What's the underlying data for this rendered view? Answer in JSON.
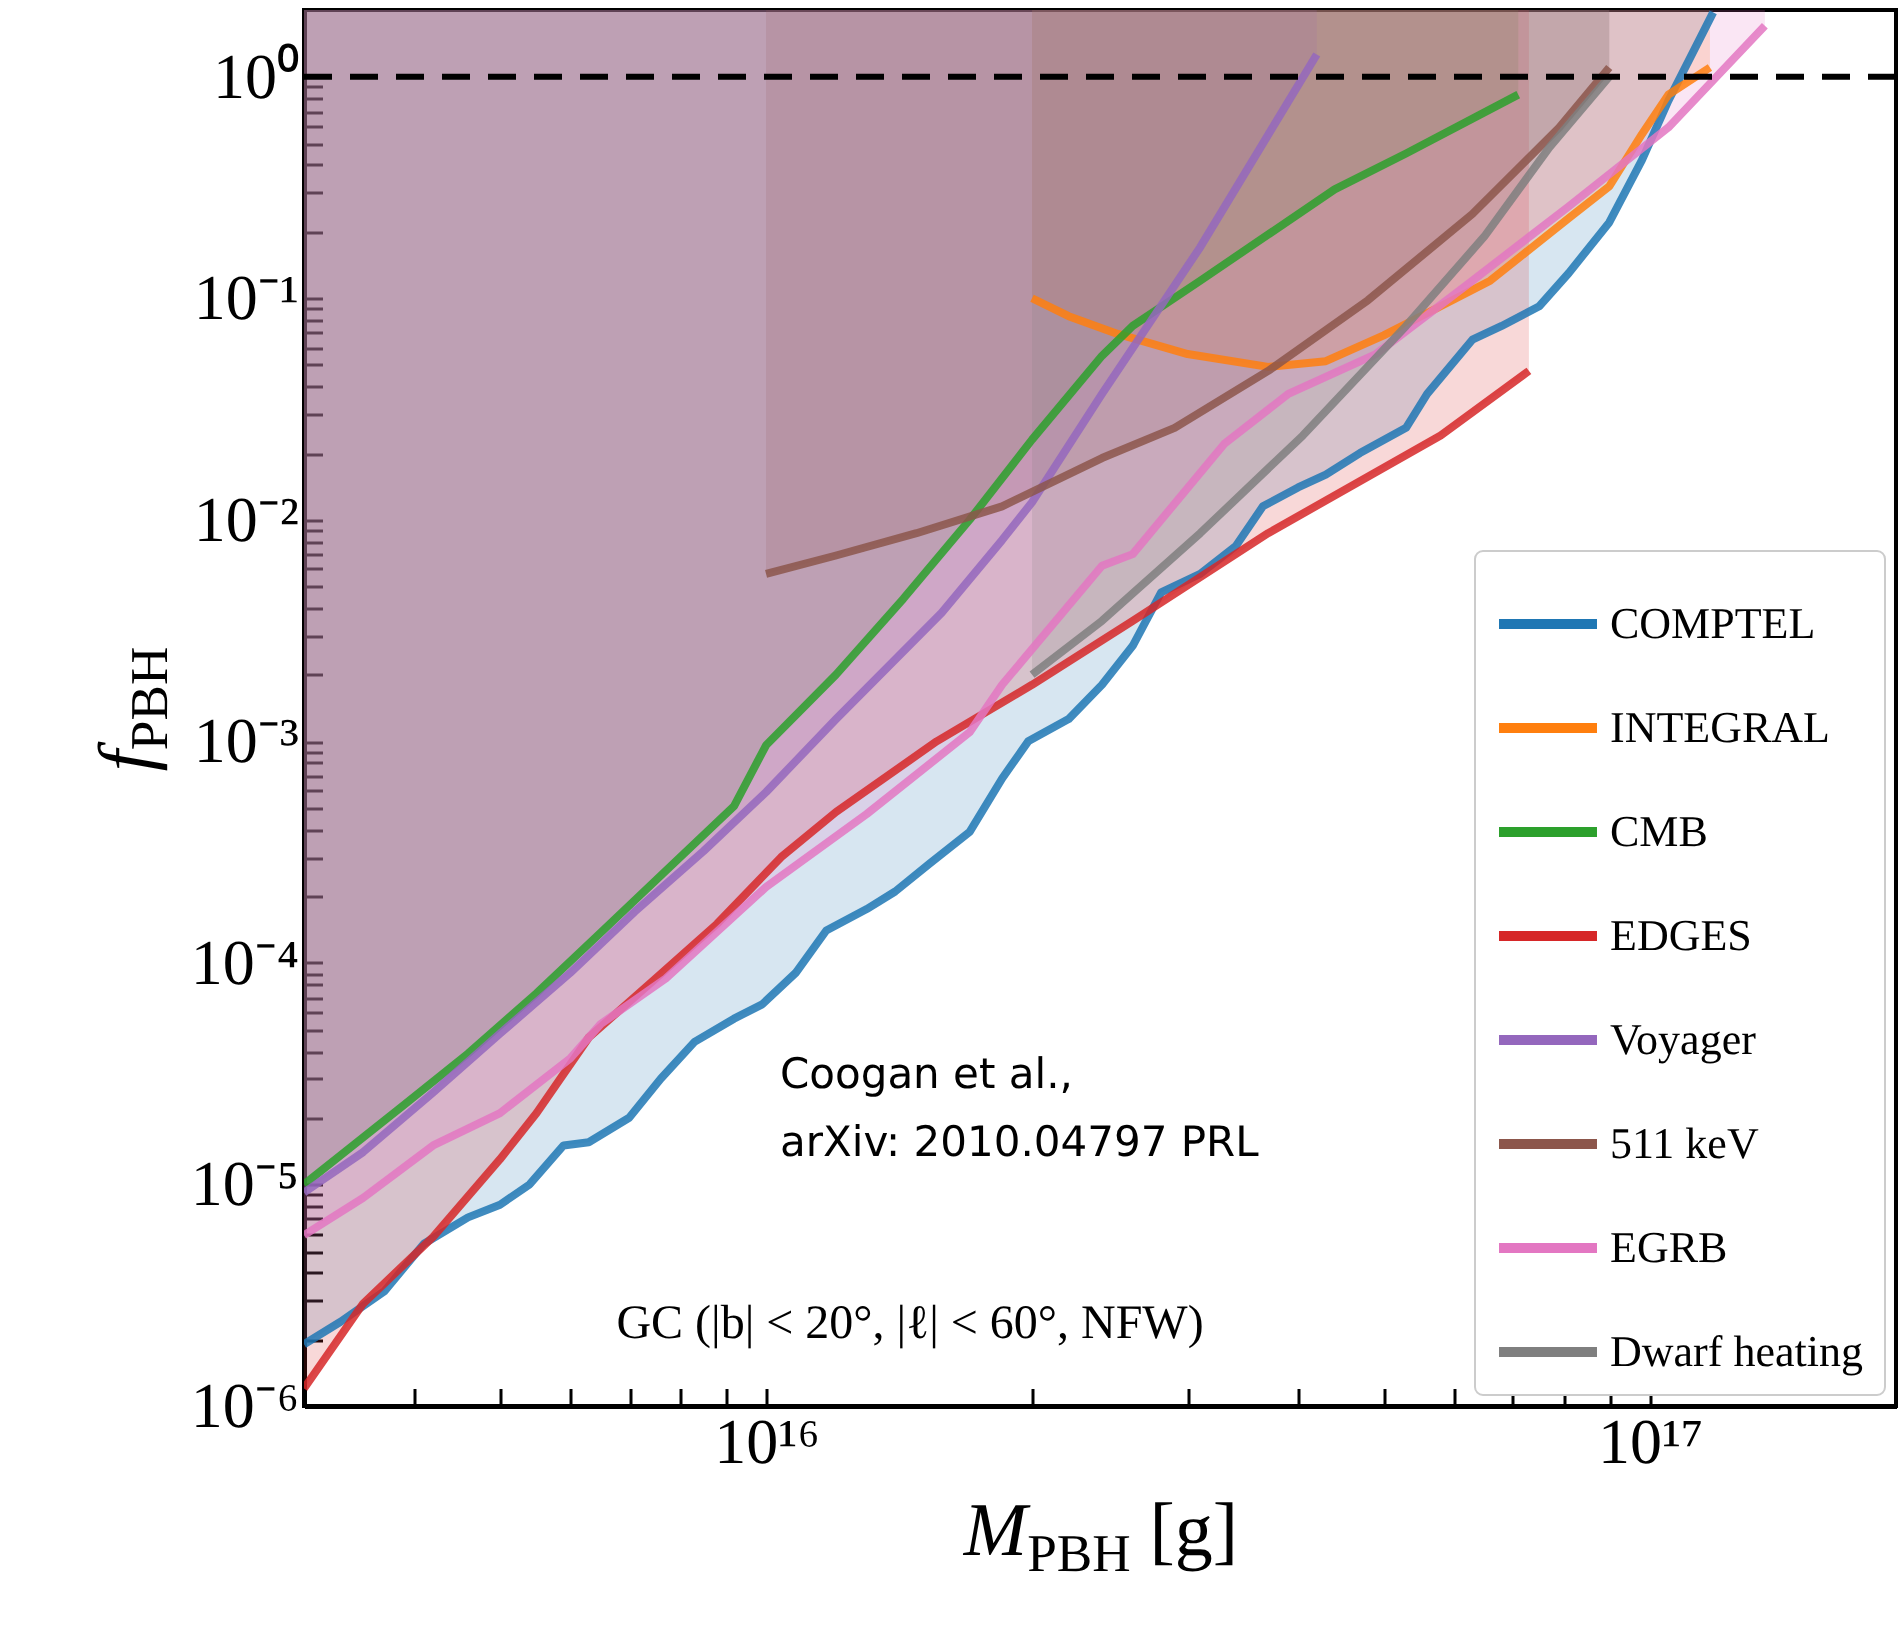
{
  "chart_data": {
    "type": "line",
    "xlabel": "M$_{PBH}$ [g]",
    "ylabel": "f$_{PBH}$",
    "log": "xy",
    "grid": false,
    "legend": "bottom right",
    "xlim": [
      3000000000000000.0,
      1.9e+17
    ],
    "ylim": [
      1e-06,
      2
    ],
    "xticks": [
      {
        "value": 4000000000000000.0,
        "label": null
      },
      {
        "value": 5000000000000000.0,
        "label": null
      },
      {
        "value": 6000000000000000.0,
        "label": null
      },
      {
        "value": 7000000000000000.0,
        "label": null
      },
      {
        "value": 8000000000000000.0,
        "label": null
      },
      {
        "value": 9000000000000000.0,
        "label": null
      },
      {
        "value": 1e+16,
        "label": "10¹⁶"
      },
      {
        "value": 2e+16,
        "label": null
      },
      {
        "value": 3e+16,
        "label": null
      },
      {
        "value": 4e+16,
        "label": null
      },
      {
        "value": 5e+16,
        "label": null
      },
      {
        "value": 6e+16,
        "label": null
      },
      {
        "value": 7e+16,
        "label": null
      },
      {
        "value": 8e+16,
        "label": null
      },
      {
        "value": 9e+16,
        "label": null
      },
      {
        "value": 1e+17,
        "label": "10¹⁷"
      }
    ],
    "yticks": [
      {
        "value": 1e-06,
        "label": "10⁻⁶"
      },
      {
        "value": 2e-06,
        "label": null
      },
      {
        "value": 3e-06,
        "label": null
      },
      {
        "value": 4e-06,
        "label": null
      },
      {
        "value": 5e-06,
        "label": null
      },
      {
        "value": 6e-06,
        "label": null
      },
      {
        "value": 7e-06,
        "label": null
      },
      {
        "value": 8e-06,
        "label": null
      },
      {
        "value": 9e-06,
        "label": null
      },
      {
        "value": 1e-05,
        "label": "10⁻⁵"
      },
      {
        "value": 2e-05,
        "label": null
      },
      {
        "value": 3e-05,
        "label": null
      },
      {
        "value": 4e-05,
        "label": null
      },
      {
        "value": 5e-05,
        "label": null
      },
      {
        "value": 6e-05,
        "label": null
      },
      {
        "value": 7e-05,
        "label": null
      },
      {
        "value": 8e-05,
        "label": null
      },
      {
        "value": 9e-05,
        "label": null
      },
      {
        "value": 0.0001,
        "label": "10⁻⁴"
      },
      {
        "value": 0.0002,
        "label": null
      },
      {
        "value": 0.0003,
        "label": null
      },
      {
        "value": 0.0004,
        "label": null
      },
      {
        "value": 0.0005,
        "label": null
      },
      {
        "value": 0.0006,
        "label": null
      },
      {
        "value": 0.0007,
        "label": null
      },
      {
        "value": 0.0008,
        "label": null
      },
      {
        "value": 0.0009,
        "label": null
      },
      {
        "value": 0.001,
        "label": "10⁻³"
      },
      {
        "value": 0.002,
        "label": null
      },
      {
        "value": 0.003,
        "label": null
      },
      {
        "value": 0.004,
        "label": null
      },
      {
        "value": 0.005,
        "label": null
      },
      {
        "value": 0.006,
        "label": null
      },
      {
        "value": 0.007,
        "label": null
      },
      {
        "value": 0.008,
        "label": null
      },
      {
        "value": 0.009,
        "label": null
      },
      {
        "value": 0.01,
        "label": "10⁻²"
      },
      {
        "value": 0.02,
        "label": null
      },
      {
        "value": 0.03,
        "label": null
      },
      {
        "value": 0.04,
        "label": null
      },
      {
        "value": 0.05,
        "label": null
      },
      {
        "value": 0.06,
        "label": null
      },
      {
        "value": 0.07,
        "label": null
      },
      {
        "value": 0.08,
        "label": null
      },
      {
        "value": 0.09,
        "label": null
      },
      {
        "value": 0.1,
        "label": "10⁻¹"
      },
      {
        "value": 0.2,
        "label": null
      },
      {
        "value": 0.3,
        "label": null
      },
      {
        "value": 0.4,
        "label": null
      },
      {
        "value": 0.5,
        "label": null
      },
      {
        "value": 0.6,
        "label": null
      },
      {
        "value": 0.7,
        "label": null
      },
      {
        "value": 0.8,
        "label": null
      },
      {
        "value": 0.9,
        "label": null
      },
      {
        "value": 1,
        "label": "10⁰"
      }
    ],
    "series": [
      {
        "name": "COMPTEL",
        "color": "#1f77b4",
        "x": [
          3000000000000000.0,
          3300000000000000.0,
          3700000000000000.0,
          4100000000000000.0,
          4600000000000000.0,
          5000000000000000.0,
          5400000000000000.0,
          5900000000000000.0,
          6300000000000000.0,
          7000000000000000.0,
          7600000000000000.0,
          8300000000000000.0,
          9200000000000000.0,
          9900000000000000.0,
          1.08e+16,
          1.17e+16,
          1.3e+16,
          1.4e+16,
          1.53e+16,
          1.7e+16,
          1.85e+16,
          1.98e+16,
          2.2e+16,
          2.4e+16,
          2.6e+16,
          2.8e+16,
          3.1e+16,
          3.4e+16,
          3.65e+16,
          4e+16,
          4.3e+16,
          4.7e+16,
          5.3e+16,
          5.6e+16,
          6.3e+16,
          6.8e+16,
          7.5e+16,
          8.1e+16,
          9e+16,
          9.8e+16,
          1.05e+17,
          1.18e+17
        ],
        "values": [
          1.9e-06,
          2.4e-06,
          3.3e-06,
          5.4e-06,
          7.1e-06,
          8.1e-06,
          1e-05,
          1.5e-05,
          1.55e-05,
          2e-05,
          3e-05,
          4.4e-05,
          5.6e-05,
          6.5e-05,
          9e-05,
          0.00014,
          0.000175,
          0.00021,
          0.00028,
          0.00039,
          0.00068,
          0.001,
          0.00126,
          0.0018,
          0.0027,
          0.0047,
          0.0057,
          0.0076,
          0.0115,
          0.014,
          0.016,
          0.02,
          0.026,
          0.037,
          0.065,
          0.075,
          0.092,
          0.13,
          0.22,
          0.42,
          0.78,
          1.95
        ],
        "lower": [
          1.9e-06,
          2.4e-06,
          3.3e-06,
          5.4e-06,
          7.1e-06,
          8.1e-06,
          1e-05,
          1.5e-05,
          1.55e-05,
          2e-05,
          3e-05,
          4.4e-05,
          5.6e-05,
          6.5e-05,
          9e-05,
          0.00014,
          0.000175,
          0.00021,
          0.00028,
          0.00039,
          0.00068,
          0.001,
          0.00126,
          0.0018,
          0.0027,
          0.0047,
          0.0057,
          0.0076,
          0.0115,
          0.014,
          0.016,
          0.02,
          0.026,
          0.037,
          0.065,
          0.075,
          0.092,
          0.13,
          0.22,
          0.42,
          0.78,
          1.95
        ],
        "upper": [
          2,
          2,
          2,
          2,
          2,
          2,
          2,
          2,
          2,
          2,
          2,
          2,
          2,
          2,
          2,
          2,
          2,
          2,
          2,
          2,
          2,
          2,
          2,
          2,
          2,
          2,
          2,
          2,
          2,
          2,
          2,
          2,
          2,
          2,
          2,
          2,
          2,
          2,
          2,
          2,
          2,
          2
        ]
      },
      {
        "name": "INTEGRAL",
        "color": "#ff7f0e",
        "x": [
          2e+16,
          2.2e+16,
          2.5e+16,
          3e+16,
          3.7e+16,
          4.3e+16,
          5e+16,
          5.8e+16,
          6.6e+16,
          8.1e+16,
          9e+16,
          9.8e+16,
          1.05e+17,
          1.17e+17
        ],
        "values": [
          0.1,
          0.083,
          0.069,
          0.056,
          0.049,
          0.052,
          0.068,
          0.092,
          0.12,
          0.23,
          0.32,
          0.55,
          0.83,
          1.1
        ],
        "lower": [
          0.1,
          0.083,
          0.069,
          0.056,
          0.049,
          0.052,
          0.068,
          0.092,
          0.12,
          0.23,
          0.32,
          0.55,
          0.83,
          1.1
        ],
        "upper": [
          2,
          2,
          2,
          2,
          2,
          2,
          2,
          2,
          2,
          2,
          2,
          2,
          2,
          2
        ]
      },
      {
        "name": "CMB",
        "color": "#2ca02c",
        "x": [
          3000000000000000.0,
          3900000000000000.0,
          4600000000000000.0,
          5500000000000000.0,
          6500000000000000.0,
          7700000000000000.0,
          9200000000000000.0,
          1e+16,
          1.2e+16,
          1.43e+16,
          1.7e+16,
          2e+16,
          2.4e+16,
          2.6e+16,
          3.1e+16,
          4.4e+16,
          5.3e+16,
          7.1e+16
        ],
        "values": [
          1e-05,
          2.3e-05,
          3.9e-05,
          7.3e-05,
          0.000137,
          0.00026,
          0.00051,
          0.00096,
          0.002,
          0.0044,
          0.01,
          0.023,
          0.055,
          0.075,
          0.12,
          0.31,
          0.45,
          0.83
        ],
        "lower": [
          1e-05,
          2.3e-05,
          3.9e-05,
          7.3e-05,
          0.000137,
          0.00026,
          0.00051,
          0.00096,
          0.002,
          0.0044,
          0.01,
          0.023,
          0.055,
          0.075,
          0.12,
          0.31,
          0.45,
          0.83
        ],
        "upper": [
          2,
          2,
          2,
          2,
          2,
          2,
          2,
          2,
          2,
          2,
          2,
          2,
          2,
          2,
          2,
          2,
          2,
          2
        ]
      },
      {
        "name": "EDGES",
        "color": "#d62728",
        "x": [
          3000000000000000.0,
          3500000000000000.0,
          4200000000000000.0,
          5000000000000000.0,
          5500000000000000.0,
          6300000000000000.0,
          7500000000000000.0,
          8800000000000000.0,
          1.04e+16,
          1.2e+16,
          1.56e+16,
          2e+16,
          2.6e+16,
          3.7e+16,
          5.8e+16,
          7.3e+16
        ],
        "values": [
          1.2e-06,
          2.9e-06,
          5.8e-06,
          1.3e-05,
          2.1e-05,
          4.6e-05,
          8.5e-05,
          0.00015,
          0.0003,
          0.00048,
          0.001,
          0.0018,
          0.0035,
          0.0087,
          0.024,
          0.047
        ],
        "lower": [
          1.2e-06,
          2.9e-06,
          5.8e-06,
          1.3e-05,
          2.1e-05,
          4.6e-05,
          8.5e-05,
          0.00015,
          0.0003,
          0.00048,
          0.001,
          0.0018,
          0.0035,
          0.0087,
          0.024,
          0.047
        ],
        "upper": [
          2,
          2,
          2,
          2,
          2,
          2,
          2,
          2,
          2,
          2,
          2,
          2,
          2,
          2,
          2,
          2
        ]
      },
      {
        "name": "Voyager",
        "color": "#9467bd",
        "x": [
          3000000000000000.0,
          3500000000000000.0,
          4200000000000000.0,
          5000000000000000.0,
          6000000000000000.0,
          7100000000000000.0,
          8500000000000000.0,
          1e+16,
          1.2e+16,
          1.58e+16,
          1.85e+16,
          2e+16,
          2.4e+16,
          3.1e+16,
          4.2e+16
        ],
        "values": [
          9.2e-06,
          1.4e-05,
          2.6e-05,
          4.8e-05,
          9e-05,
          0.00017,
          0.00032,
          0.00059,
          0.00126,
          0.0038,
          0.0081,
          0.012,
          0.037,
          0.17,
          1.26
        ],
        "lower": [
          9.2e-06,
          1.4e-05,
          2.6e-05,
          4.8e-05,
          9e-05,
          0.00017,
          0.00032,
          0.00059,
          0.00126,
          0.0038,
          0.0081,
          0.012,
          0.037,
          0.17,
          1.26
        ],
        "upper": [
          2,
          2,
          2,
          2,
          2,
          2,
          2,
          2,
          2,
          2,
          2,
          2,
          2,
          2,
          2
        ]
      },
      {
        "name": "511 keV",
        "color": "#8c564b",
        "x": [
          1e+16,
          1.2e+16,
          1.48e+16,
          1.85e+16,
          2.4e+16,
          2.9e+16,
          3.7e+16,
          4.8e+16,
          6.3e+16,
          7.9e+16,
          9e+16
        ],
        "values": [
          0.0057,
          0.0069,
          0.0087,
          0.0115,
          0.019,
          0.026,
          0.047,
          0.098,
          0.24,
          0.59,
          1.1
        ],
        "lower": [
          0.0057,
          0.0069,
          0.0087,
          0.0115,
          0.019,
          0.026,
          0.047,
          0.098,
          0.24,
          0.59,
          1.1
        ],
        "upper": [
          2,
          2,
          2,
          2,
          2,
          2,
          2,
          2,
          2,
          2,
          2
        ]
      },
      {
        "name": "EGRB",
        "color": "#e377c2",
        "x": [
          3000000000000000.0,
          3500000000000000.0,
          4200000000000000.0,
          5000000000000000.0,
          6000000000000000.0,
          6500000000000000.0,
          7700000000000000.0,
          1e+16,
          1.3e+16,
          1.7e+16,
          1.85e+16,
          2.4e+16,
          2.6e+16,
          3.3e+16,
          3.9e+16,
          4.9e+16,
          6.3e+16,
          8.1e+16,
          1.05e+17,
          1.35e+17
        ],
        "values": [
          5.9e-06,
          8.7e-06,
          1.5e-05,
          2.1e-05,
          3.7e-05,
          5.3e-05,
          8.5e-05,
          0.00022,
          0.00047,
          0.0011,
          0.0018,
          0.0062,
          0.007,
          0.022,
          0.037,
          0.056,
          0.12,
          0.26,
          0.59,
          1.7
        ],
        "lower": [
          5.9e-06,
          8.7e-06,
          1.5e-05,
          2.1e-05,
          3.7e-05,
          5.3e-05,
          8.5e-05,
          0.00022,
          0.00047,
          0.0011,
          0.0018,
          0.0062,
          0.007,
          0.022,
          0.037,
          0.056,
          0.12,
          0.26,
          0.59,
          1.7
        ],
        "upper": [
          2,
          2,
          2,
          2,
          2,
          2,
          2,
          2,
          2,
          2,
          2,
          2,
          2,
          2,
          2,
          2,
          2,
          2,
          2,
          2
        ]
      },
      {
        "name": "Dwarf heating",
        "color": "#7f7f7f",
        "x": [
          2e+16,
          2.4e+16,
          3.1e+16,
          4.05e+16,
          5.3e+16,
          6.5e+16,
          7.7e+16,
          9e+16
        ],
        "values": [
          0.002,
          0.0035,
          0.0087,
          0.024,
          0.075,
          0.19,
          0.48,
          1.0
        ],
        "lower": [
          0.002,
          0.0035,
          0.0087,
          0.024,
          0.075,
          0.19,
          0.48,
          1.0
        ],
        "upper": [
          2,
          2,
          2,
          2,
          2,
          2,
          2,
          2
        ]
      }
    ],
    "ref_lines": [
      {
        "axis": "y",
        "value": 1,
        "color": "#000000",
        "line_style": "dashed"
      }
    ],
    "annotations": [
      "Coogan et al.,\narXiv: 2010.04797 PRL",
      "GC (|b| < 20°, |ℓ| < 60°, NFW)"
    ]
  }
}
